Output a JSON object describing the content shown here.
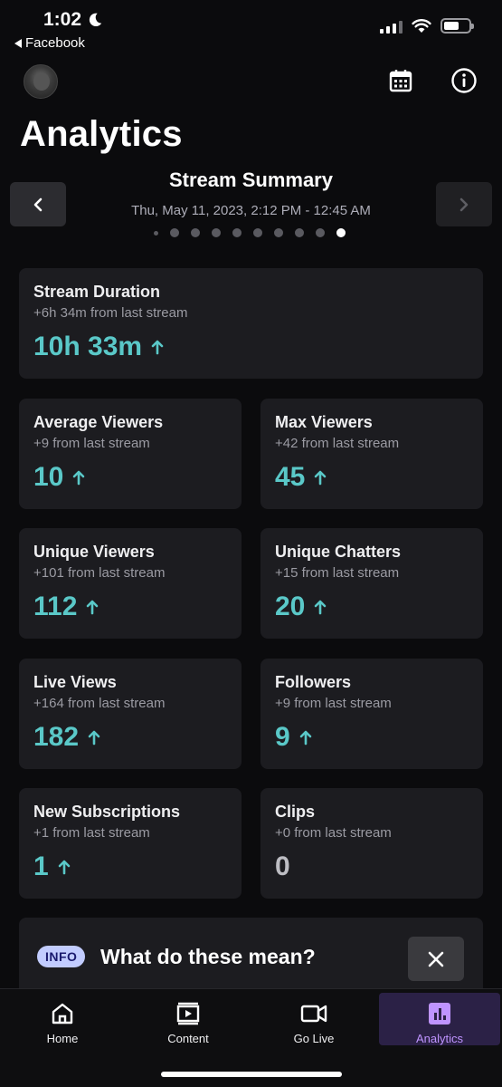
{
  "status_bar": {
    "time": "1:02",
    "back_app": "Facebook"
  },
  "header": {
    "title": "Analytics",
    "icons": {
      "calendar": "calendar-icon",
      "info": "info-icon"
    }
  },
  "summary": {
    "title": "Stream Summary",
    "date_range": "Thu, May 11, 2023, 2:12 PM - 12:45 AM",
    "page_count": 10,
    "active_page": 10
  },
  "metrics": [
    {
      "id": "stream-duration",
      "title": "Stream Duration",
      "change": "+6h 34m from last stream",
      "value": "10h 33m",
      "trend": "up"
    },
    {
      "id": "average-viewers",
      "title": "Average Viewers",
      "change": "+9 from last stream",
      "value": "10",
      "trend": "up"
    },
    {
      "id": "max-viewers",
      "title": "Max Viewers",
      "change": "+42 from last stream",
      "value": "45",
      "trend": "up"
    },
    {
      "id": "unique-viewers",
      "title": "Unique Viewers",
      "change": "+101 from last stream",
      "value": "112",
      "trend": "up"
    },
    {
      "id": "unique-chatters",
      "title": "Unique Chatters",
      "change": "+15 from last stream",
      "value": "20",
      "trend": "up"
    },
    {
      "id": "live-views",
      "title": "Live Views",
      "change": "+164 from last stream",
      "value": "182",
      "trend": "up"
    },
    {
      "id": "followers",
      "title": "Followers",
      "change": "+9 from last stream",
      "value": "9",
      "trend": "up"
    },
    {
      "id": "new-subscriptions",
      "title": "New Subscriptions",
      "change": "+1 from last stream",
      "value": "1",
      "trend": "up"
    },
    {
      "id": "clips",
      "title": "Clips",
      "change": "+0 from last stream",
      "value": "0",
      "trend": "none"
    }
  ],
  "info_panel": {
    "badge": "INFO",
    "text": "What do these mean?"
  },
  "bottom_nav": [
    {
      "label": "Home",
      "icon": "home-icon",
      "active": false
    },
    {
      "label": "Content",
      "icon": "content-icon",
      "active": false
    },
    {
      "label": "Go Live",
      "icon": "camera-icon",
      "active": false
    },
    {
      "label": "Analytics",
      "icon": "analytics-icon",
      "active": true
    }
  ],
  "colors": {
    "accent_positive": "#5ac8c8",
    "active_tab": "#bf94ff",
    "info_badge": "#c2ccff"
  }
}
